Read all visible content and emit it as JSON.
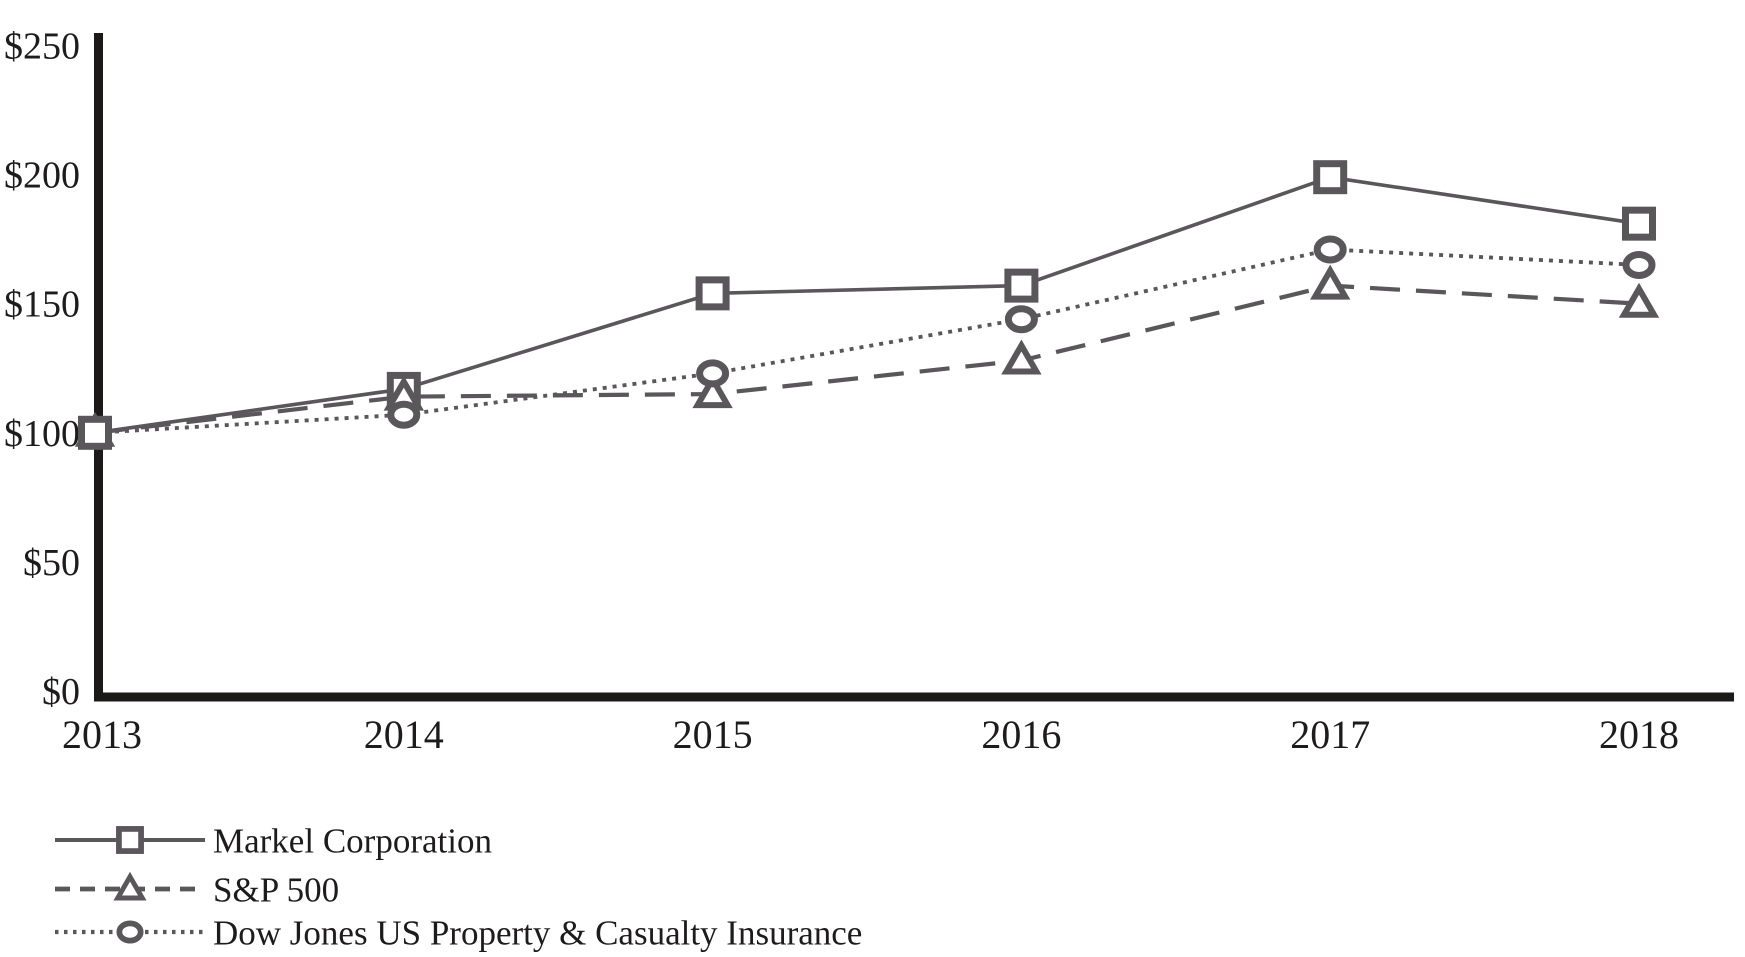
{
  "chart_data": {
    "type": "line",
    "title": "",
    "xlabel": "",
    "ylabel": "",
    "x_labels": [
      "2013",
      "2014",
      "2015",
      "2016",
      "2017",
      "2018"
    ],
    "ytick_labels": [
      "$0",
      "$50",
      "$100",
      "$150",
      "$200",
      "$250"
    ],
    "ytick_values": [
      0,
      50,
      100,
      150,
      200,
      250
    ],
    "ylim": [
      0,
      250
    ],
    "grid": false,
    "legend_position": "bottom-left",
    "series": [
      {
        "name": "Markel Corporation",
        "marker": "square",
        "line_style": "solid",
        "values": [
          100,
          117,
          154,
          157,
          199,
          181
        ]
      },
      {
        "name": "S&P 500",
        "marker": "triangle",
        "line_style": "dashed",
        "values": [
          100,
          114,
          115,
          128,
          157,
          150
        ]
      },
      {
        "name": "Dow Jones US Property & Casualty Insurance",
        "marker": "circle",
        "line_style": "dotted",
        "values": [
          100,
          107,
          123,
          144,
          171,
          165
        ]
      }
    ],
    "colors": {
      "series": "#5a575a",
      "axis": "#1c1919",
      "text": "#1e1b1c",
      "marker_fill": "#ffffff",
      "background": "#ffffff"
    }
  }
}
